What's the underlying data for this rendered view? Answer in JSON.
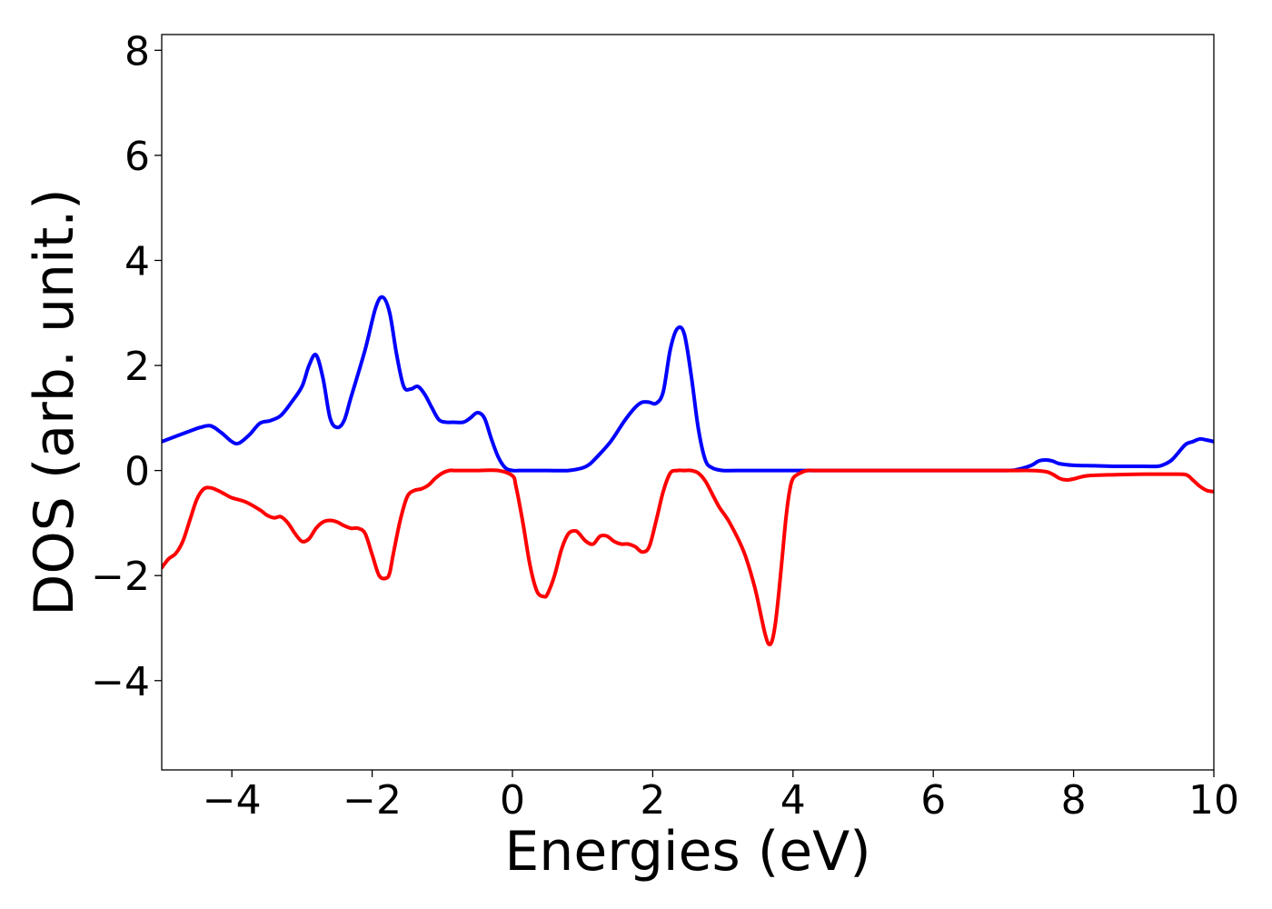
{
  "chart_data": {
    "type": "line",
    "title": "",
    "xlabel": "Energies (eV)",
    "ylabel": "DOS (arb. unit.)",
    "xlim": [
      -5,
      10
    ],
    "ylim": [
      -5.7,
      8.3
    ],
    "xticks": [
      -4,
      -2,
      0,
      2,
      4,
      6,
      8,
      10
    ],
    "xtick_labels": [
      "−4",
      "−2",
      "0",
      "2",
      "4",
      "6",
      "8",
      "10"
    ],
    "yticks": [
      -4,
      -2,
      0,
      2,
      4,
      6,
      8
    ],
    "ytick_labels": [
      "−4",
      "−2",
      "0",
      "2",
      "4",
      "6",
      "8"
    ],
    "grid": false,
    "legend": "none",
    "series": [
      {
        "color": "#0000ff",
        "x": [
          -5.0,
          -4.6,
          -4.45,
          -4.3,
          -4.15,
          -4.0,
          -3.9,
          -3.75,
          -3.6,
          -3.45,
          -3.3,
          -3.15,
          -3.0,
          -2.9,
          -2.8,
          -2.7,
          -2.6,
          -2.5,
          -2.4,
          -2.3,
          -2.1,
          -1.95,
          -1.85,
          -1.75,
          -1.65,
          -1.55,
          -1.45,
          -1.35,
          -1.25,
          -1.15,
          -1.05,
          -0.95,
          -0.85,
          -0.7,
          -0.6,
          -0.5,
          -0.4,
          -0.3,
          -0.2,
          -0.1,
          0.0,
          0.1,
          0.2,
          0.5,
          0.8,
          1.0,
          1.1,
          1.2,
          1.4,
          1.6,
          1.75,
          1.85,
          1.95,
          2.05,
          2.15,
          2.25,
          2.35,
          2.45,
          2.55,
          2.65,
          2.75,
          2.85,
          3.0,
          3.2,
          4.0,
          5.0,
          6.0,
          7.0,
          7.2,
          7.4,
          7.5,
          7.6,
          7.7,
          7.8,
          8.0,
          8.3,
          8.6,
          9.0,
          9.2,
          9.3,
          9.4,
          9.5,
          9.6,
          9.7,
          9.8,
          9.9,
          10.0
        ],
        "y": [
          0.55,
          0.75,
          0.82,
          0.85,
          0.72,
          0.55,
          0.52,
          0.68,
          0.9,
          0.95,
          1.05,
          1.3,
          1.6,
          2.0,
          2.2,
          1.75,
          1.0,
          0.82,
          0.95,
          1.4,
          2.3,
          3.1,
          3.3,
          3.0,
          2.2,
          1.6,
          1.55,
          1.6,
          1.45,
          1.2,
          0.97,
          0.92,
          0.92,
          0.92,
          1.0,
          1.1,
          1.0,
          0.6,
          0.25,
          0.05,
          0.0,
          0.0,
          0.0,
          0.0,
          0.0,
          0.05,
          0.12,
          0.25,
          0.55,
          0.95,
          1.2,
          1.3,
          1.3,
          1.28,
          1.5,
          2.3,
          2.7,
          2.6,
          1.8,
          0.8,
          0.2,
          0.05,
          0.0,
          0.0,
          0.0,
          0.0,
          0.0,
          0.0,
          0.02,
          0.1,
          0.18,
          0.2,
          0.18,
          0.13,
          0.1,
          0.09,
          0.08,
          0.08,
          0.08,
          0.12,
          0.2,
          0.35,
          0.5,
          0.55,
          0.6,
          0.58,
          0.55
        ]
      },
      {
        "color": "#ff0000",
        "x": [
          -5.0,
          -4.9,
          -4.8,
          -4.7,
          -4.6,
          -4.5,
          -4.4,
          -4.3,
          -4.2,
          -4.1,
          -4.0,
          -3.8,
          -3.6,
          -3.5,
          -3.4,
          -3.3,
          -3.2,
          -3.1,
          -3.0,
          -2.9,
          -2.8,
          -2.7,
          -2.6,
          -2.5,
          -2.4,
          -2.3,
          -2.2,
          -2.1,
          -2.0,
          -1.9,
          -1.8,
          -1.75,
          -1.7,
          -1.6,
          -1.5,
          -1.4,
          -1.3,
          -1.2,
          -1.1,
          -1.0,
          -0.9,
          -0.8,
          -0.5,
          -0.2,
          0.0,
          0.05,
          0.15,
          0.25,
          0.35,
          0.45,
          0.5,
          0.6,
          0.7,
          0.8,
          0.9,
          0.95,
          1.05,
          1.15,
          1.25,
          1.35,
          1.45,
          1.55,
          1.65,
          1.75,
          1.85,
          1.95,
          2.05,
          2.15,
          2.25,
          2.35,
          2.45,
          2.55,
          2.65,
          2.75,
          2.85,
          2.95,
          3.1,
          3.3,
          3.45,
          3.55,
          3.6,
          3.65,
          3.7,
          3.75,
          3.8,
          3.85,
          3.9,
          3.95,
          4.0,
          4.1,
          4.2,
          4.3,
          4.4,
          5.0,
          6.0,
          7.0,
          7.4,
          7.6,
          7.7,
          7.8,
          7.9,
          8.0,
          8.2,
          8.6,
          9.0,
          9.4,
          9.6,
          9.7,
          9.8,
          9.9,
          10.0
        ],
        "y": [
          -1.85,
          -1.68,
          -1.58,
          -1.35,
          -0.95,
          -0.55,
          -0.35,
          -0.33,
          -0.38,
          -0.45,
          -0.52,
          -0.6,
          -0.75,
          -0.85,
          -0.9,
          -0.88,
          -1.0,
          -1.2,
          -1.35,
          -1.3,
          -1.1,
          -0.98,
          -0.95,
          -0.98,
          -1.05,
          -1.1,
          -1.1,
          -1.2,
          -1.6,
          -2.0,
          -2.05,
          -1.95,
          -1.6,
          -0.95,
          -0.5,
          -0.38,
          -0.35,
          -0.28,
          -0.15,
          -0.05,
          0.0,
          0.0,
          0.0,
          0.0,
          -0.1,
          -0.3,
          -1.0,
          -1.8,
          -2.3,
          -2.4,
          -2.35,
          -2.0,
          -1.5,
          -1.2,
          -1.15,
          -1.2,
          -1.35,
          -1.4,
          -1.25,
          -1.25,
          -1.35,
          -1.4,
          -1.4,
          -1.45,
          -1.55,
          -1.45,
          -0.95,
          -0.4,
          -0.05,
          0.0,
          0.0,
          0.0,
          -0.05,
          -0.2,
          -0.45,
          -0.7,
          -1.0,
          -1.55,
          -2.2,
          -2.8,
          -3.1,
          -3.3,
          -3.25,
          -2.9,
          -2.3,
          -1.6,
          -0.9,
          -0.4,
          -0.15,
          -0.05,
          0.0,
          0.0,
          0.0,
          0.0,
          0.0,
          0.0,
          0.0,
          -0.02,
          -0.07,
          -0.15,
          -0.18,
          -0.16,
          -0.1,
          -0.08,
          -0.07,
          -0.07,
          -0.08,
          -0.18,
          -0.3,
          -0.38,
          -0.4
        ]
      }
    ]
  }
}
